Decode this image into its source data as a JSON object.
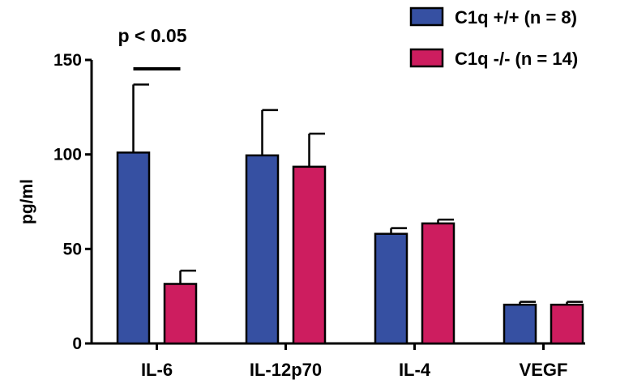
{
  "chart_data": {
    "type": "bar",
    "categories": [
      "IL-6",
      "IL-12p70",
      "IL-4",
      "VEGF"
    ],
    "series": [
      {
        "name": "C1q +/+ (n = 8)",
        "color": "#3650a2",
        "values": [
          101,
          99.5,
          58,
          20.5
        ],
        "error": [
          36,
          24,
          3,
          1.5
        ]
      },
      {
        "name": "C1q -/- (n = 14)",
        "color": "#cd1d5f",
        "values": [
          31.5,
          93.5,
          63.5,
          20.5
        ],
        "error": [
          7,
          17.5,
          2,
          1.5
        ]
      }
    ],
    "ylabel": "pg/ml",
    "ylim": [
      0,
      150
    ],
    "yticks": [
      0,
      50,
      100,
      150
    ],
    "annotation": {
      "text": "p < 0.05",
      "category": "IL-6"
    },
    "legend_position": "top-right",
    "grid": false
  }
}
